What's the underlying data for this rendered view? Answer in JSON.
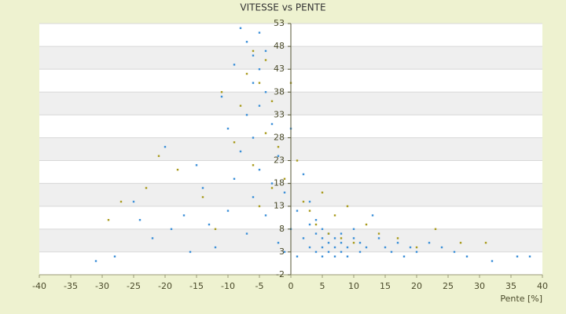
{
  "chart_data": {
    "type": "scatter",
    "title": "VITESSE vs PENTE",
    "x_label": "Pente [%]",
    "xlim": [
      -40,
      40
    ],
    "xticks": [
      -40,
      -35,
      -30,
      -25,
      -20,
      -15,
      -10,
      -5,
      0,
      5,
      10,
      15,
      20,
      25,
      30,
      35,
      40
    ],
    "ylim": [
      -2,
      53
    ],
    "yticks": [
      -2,
      3,
      8,
      13,
      18,
      23,
      28,
      33,
      38,
      43,
      48,
      53
    ],
    "grid": true,
    "series": [
      {
        "color": "#3a8fd8",
        "x": [
          -31,
          -28,
          -25,
          -24,
          -22,
          -20,
          -19,
          -17,
          -16,
          -15,
          -14,
          -13,
          -12,
          -11,
          -10,
          -10,
          -9,
          -9,
          -8,
          -8,
          -7,
          -7,
          -7,
          -6,
          -6,
          -6,
          -6,
          -5,
          -5,
          -5,
          -5,
          -4,
          -4,
          -4,
          -3,
          -3,
          -2,
          -2,
          -1,
          -1,
          0,
          0,
          1,
          1,
          2,
          2,
          3,
          3,
          3,
          4,
          4,
          4,
          5,
          5,
          5,
          5,
          6,
          6,
          6,
          7,
          7,
          7,
          8,
          8,
          8,
          9,
          9,
          10,
          10,
          11,
          11,
          12,
          13,
          14,
          15,
          16,
          17,
          18,
          19,
          20,
          22,
          24,
          26,
          28,
          32,
          36,
          38
        ],
        "y": [
          1,
          2,
          14,
          10,
          6,
          26,
          8,
          11,
          3,
          22,
          17,
          9,
          4,
          37,
          30,
          12,
          44,
          19,
          52,
          25,
          49,
          33,
          7,
          46,
          40,
          28,
          15,
          51,
          43,
          35,
          21,
          47,
          38,
          11,
          31,
          18,
          24,
          5,
          16,
          3,
          30,
          8,
          12,
          2,
          20,
          6,
          9,
          4,
          14,
          7,
          3,
          10,
          6,
          4,
          2,
          8,
          5,
          3,
          7,
          6,
          2,
          4,
          5,
          3,
          7,
          4,
          2,
          6,
          8,
          3,
          5,
          4,
          11,
          6,
          4,
          3,
          5,
          2,
          4,
          3,
          5,
          4,
          3,
          2,
          1,
          2,
          2
        ]
      },
      {
        "color": "#a89a1c",
        "x": [
          -29,
          -27,
          -23,
          -21,
          -18,
          -14,
          -12,
          -11,
          -9,
          -8,
          -7,
          -6,
          -6,
          -5,
          -5,
          -4,
          -4,
          -3,
          -3,
          -2,
          -1,
          0,
          1,
          2,
          3,
          4,
          5,
          6,
          7,
          8,
          9,
          10,
          12,
          14,
          17,
          20,
          23,
          27,
          31
        ],
        "y": [
          10,
          14,
          17,
          24,
          21,
          15,
          8,
          38,
          27,
          35,
          42,
          47,
          22,
          40,
          13,
          29,
          45,
          36,
          17,
          26,
          19,
          40,
          23,
          14,
          12,
          9,
          16,
          7,
          11,
          6,
          13,
          5,
          9,
          7,
          6,
          4,
          8,
          5,
          5
        ]
      }
    ]
  }
}
